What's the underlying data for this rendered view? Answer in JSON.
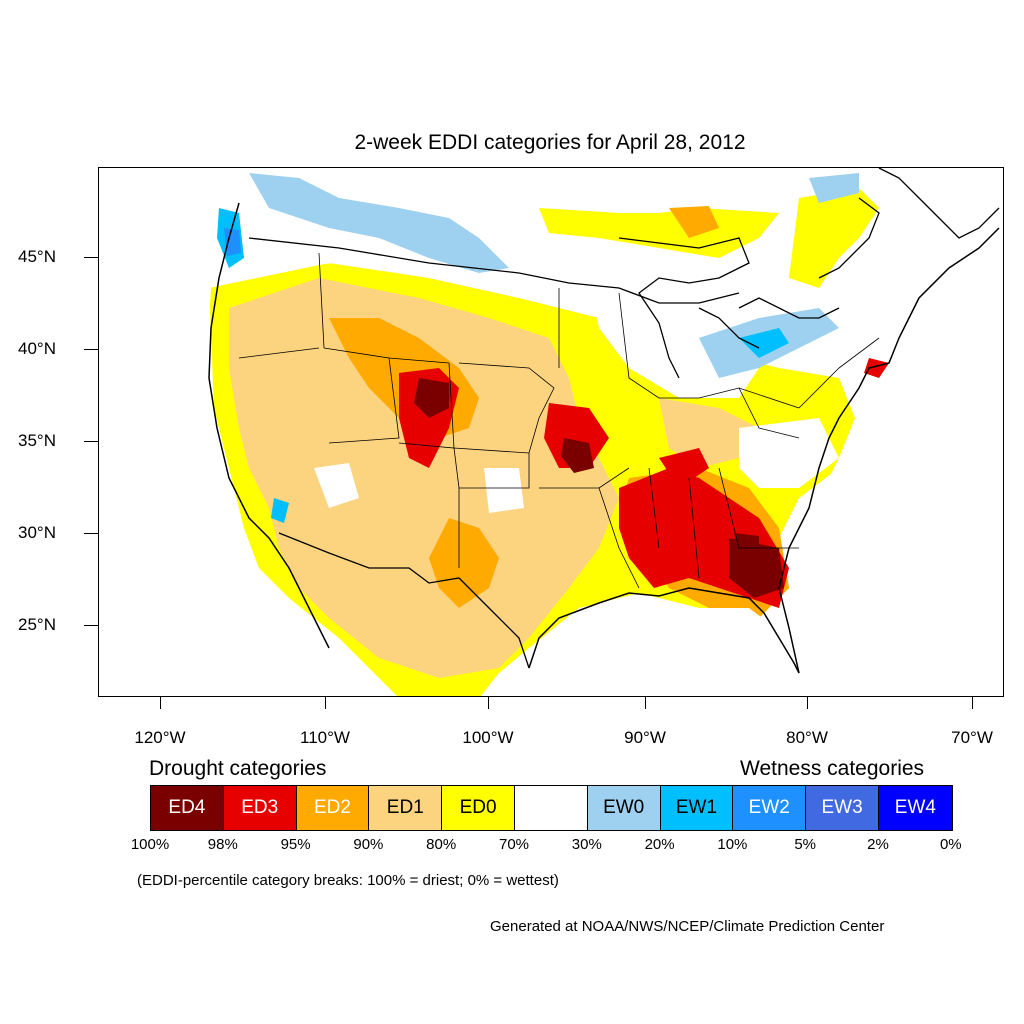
{
  "title": "2-week EDDI categories for April 28, 2012",
  "map": {
    "type": "choropleth-raster",
    "region": "Contiguous United States",
    "lat_labels": [
      "45°N",
      "40°N",
      "35°N",
      "30°N",
      "25°N"
    ],
    "lon_labels": [
      "120°W",
      "110°W",
      "100°W",
      "90°W",
      "80°W",
      "70°W"
    ]
  },
  "legend": {
    "drought_heading": "Drought categories",
    "wetness_heading": "Wetness categories",
    "categories": [
      {
        "label": "ED4",
        "color": "#7a0000",
        "text_color": "#ffffff"
      },
      {
        "label": "ED3",
        "color": "#e60000",
        "text_color": "#ffffff"
      },
      {
        "label": "ED2",
        "color": "#ffaa00",
        "text_color": "#ffffff"
      },
      {
        "label": "ED1",
        "color": "#fcd37f",
        "text_color": "#000000"
      },
      {
        "label": "ED0",
        "color": "#ffff00",
        "text_color": "#000000"
      },
      {
        "label": "",
        "color": "#ffffff",
        "text_color": "#000000"
      },
      {
        "label": "EW0",
        "color": "#9ed0f0",
        "text_color": "#000000"
      },
      {
        "label": "EW1",
        "color": "#00bfff",
        "text_color": "#000000"
      },
      {
        "label": "EW2",
        "color": "#1e90ff",
        "text_color": "#ffffff"
      },
      {
        "label": "EW3",
        "color": "#4169e1",
        "text_color": "#ffffff"
      },
      {
        "label": "EW4",
        "color": "#0000ff",
        "text_color": "#ffffff"
      }
    ],
    "percent_breaks": [
      "100%",
      "98%",
      "95%",
      "90%",
      "80%",
      "70%",
      "30%",
      "20%",
      "10%",
      "5%",
      "2%",
      "0%"
    ]
  },
  "note": "(EDDI-percentile category breaks: 100% = driest; 0% = wettest)",
  "credit": "Generated at NOAA/NWS/NCEP/Climate Prediction Center"
}
